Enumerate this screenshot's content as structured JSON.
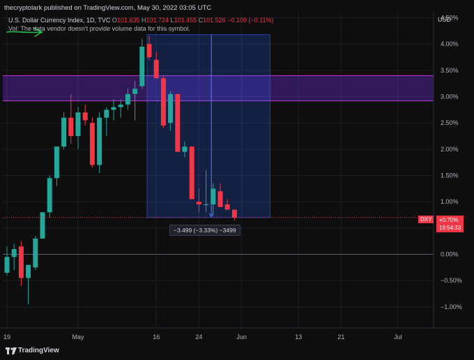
{
  "header": {
    "published": "thecryptolark published on TradingView.com, May 30, 2022 03:05 UTC",
    "symbol": "U.S. Dollar Currency Index, 1D, TVC",
    "o_label": "O",
    "o": "101.635",
    "h_label": "H",
    "h": "101.724",
    "l_label": "L",
    "l": "101.455",
    "c_label": "C",
    "c": "101.526",
    "change": "−0.109 (−0.11%)",
    "vol_note": "Vol: The data vendor doesn't provide volume data for this symbol."
  },
  "axis": {
    "currency": "USD"
  },
  "measure_label": "−3.499 (−3.33%) −3499",
  "dxy_tag": "DXY",
  "price_tag": {
    "pct": "+0.70%",
    "time": "19:54:33"
  },
  "footer": {
    "brand": "TradingView"
  },
  "colors": {
    "up": "#26a69a",
    "down": "#f23645",
    "zone": "#7b2ff7",
    "measure": "#2962ff",
    "background": "#0e0e0e"
  },
  "chart_data": {
    "type": "candlestick",
    "y_unit": "%",
    "ylim": [
      -1.4,
      4.6
    ],
    "y_ticks": [
      4.5,
      4.0,
      3.5,
      3.0,
      2.5,
      2.0,
      1.5,
      1.0,
      0.5,
      0.0,
      -0.5,
      -1.0
    ],
    "y_tick_labels": [
      "4.50%",
      "4.00%",
      "3.50%",
      "3.00%",
      "2.50%",
      "2.00%",
      "1.50%",
      "1.00%",
      "0.50%",
      "0.00%",
      "−0.50%",
      "−1.00%"
    ],
    "x_labels": [
      {
        "label": "19",
        "idx": 0
      },
      {
        "label": "May",
        "idx": 10
      },
      {
        "label": "16",
        "idx": 21
      },
      {
        "label": "24",
        "idx": 27
      },
      {
        "label": "Jun",
        "idx": 33
      },
      {
        "label": "13",
        "idx": 41
      },
      {
        "label": "21",
        "idx": 47
      },
      {
        "label": "Jul",
        "idx": 55
      }
    ],
    "bars_visible_range": [
      0,
      60
    ],
    "candles": [
      {
        "o": -0.35,
        "h": 0.15,
        "l": -0.4,
        "c": -0.05
      },
      {
        "o": -0.05,
        "h": 0.2,
        "l": -0.3,
        "c": 0.1
      },
      {
        "o": 0.15,
        "h": 0.25,
        "l": -0.6,
        "c": -0.45
      },
      {
        "o": -0.45,
        "h": -0.2,
        "l": -0.95,
        "c": -0.2
      },
      {
        "o": -0.25,
        "h": 0.35,
        "l": -0.3,
        "c": 0.3
      },
      {
        "o": 0.3,
        "h": 0.8,
        "l": 0.3,
        "c": 0.8
      },
      {
        "o": 0.8,
        "h": 1.5,
        "l": 0.7,
        "c": 1.45
      },
      {
        "o": 1.45,
        "h": 2.05,
        "l": 1.3,
        "c": 2.05
      },
      {
        "o": 2.05,
        "h": 2.7,
        "l": 2.0,
        "c": 2.6
      },
      {
        "o": 2.6,
        "h": 3.05,
        "l": 2.1,
        "c": 2.25
      },
      {
        "o": 2.25,
        "h": 2.8,
        "l": 2.0,
        "c": 2.7
      },
      {
        "o": 2.7,
        "h": 2.85,
        "l": 2.45,
        "c": 2.55
      },
      {
        "o": 2.5,
        "h": 2.6,
        "l": 1.65,
        "c": 1.7
      },
      {
        "o": 1.7,
        "h": 2.7,
        "l": 1.55,
        "c": 2.6
      },
      {
        "o": 2.6,
        "h": 2.8,
        "l": 2.25,
        "c": 2.75
      },
      {
        "o": 2.75,
        "h": 2.95,
        "l": 2.55,
        "c": 2.8
      },
      {
        "o": 2.8,
        "h": 2.95,
        "l": 2.6,
        "c": 2.85
      },
      {
        "o": 2.85,
        "h": 3.15,
        "l": 2.75,
        "c": 3.05
      },
      {
        "o": 3.05,
        "h": 3.3,
        "l": 2.55,
        "c": 3.15
      },
      {
        "o": 3.2,
        "h": 4.1,
        "l": 3.15,
        "c": 3.95
      },
      {
        "o": 4.0,
        "h": 4.15,
        "l": 3.7,
        "c": 3.75
      },
      {
        "o": 3.7,
        "h": 3.85,
        "l": 3.35,
        "c": 3.35
      },
      {
        "o": 3.35,
        "h": 3.4,
        "l": 2.4,
        "c": 2.45
      },
      {
        "o": 2.5,
        "h": 3.1,
        "l": 2.35,
        "c": 3.05
      },
      {
        "o": 3.05,
        "h": 3.05,
        "l": 1.95,
        "c": 1.95
      },
      {
        "o": 1.95,
        "h": 2.15,
        "l": 1.85,
        "c": 2.05
      },
      {
        "o": 2.05,
        "h": 2.05,
        "l": 1.05,
        "c": 1.05
      },
      {
        "o": 1.0,
        "h": 1.25,
        "l": 0.8,
        "c": 0.95
      },
      {
        "o": 0.95,
        "h": 1.6,
        "l": 0.8,
        "c": 0.95
      },
      {
        "o": 0.95,
        "h": 1.35,
        "l": 0.75,
        "c": 1.25
      },
      {
        "o": 1.2,
        "h": 1.35,
        "l": 0.9,
        "c": 0.9
      },
      {
        "o": 0.95,
        "h": 1.05,
        "l": 0.85,
        "c": 0.85
      },
      {
        "o": 0.85,
        "h": 0.85,
        "l": 0.65,
        "c": 0.7
      }
    ],
    "zone": {
      "y_low": 2.92,
      "y_high": 3.4
    },
    "measure": {
      "x_start_idx": 20,
      "x_end_idx": 37,
      "y_top": 4.18,
      "y_bottom": 0.7
    },
    "last_price_line": 0.7,
    "zero_line": 0.0,
    "grid": true
  }
}
